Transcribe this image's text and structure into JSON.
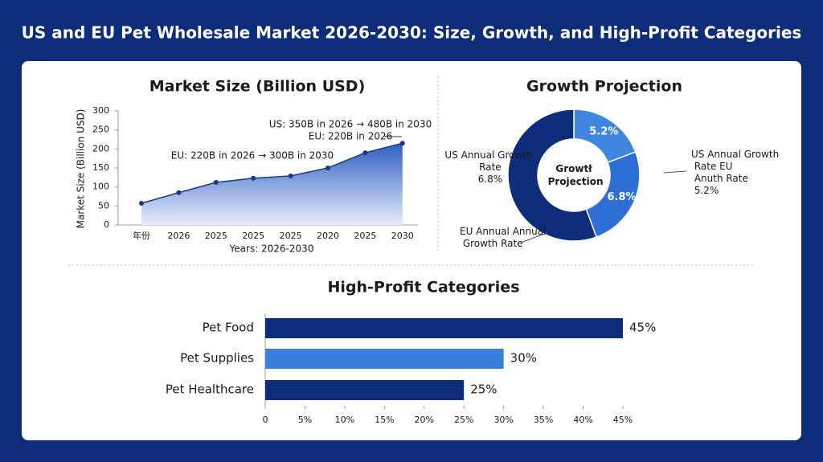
{
  "title": "US and EU Pet Wholesale Market 2026-2030: Size, Growth, and High-Profit Categories",
  "chart_data": [
    {
      "type": "area",
      "title": "Market Size (Billion USD)",
      "y_label": "Market Size (Billion USD)",
      "x_label": "Years: 2026-2030",
      "categories": [
        "年份",
        "2026",
        "2025",
        "2025",
        "2025",
        "2020",
        "2025",
        "2030"
      ],
      "values": [
        57,
        85,
        112,
        123,
        129,
        150,
        190,
        215
      ],
      "ylim": [
        0,
        300
      ],
      "yticks": [
        0,
        50,
        100,
        150,
        200,
        250,
        300
      ],
      "color": "#1b3a86",
      "annotations": [
        "US: 350B in 2026 → 480B in 2030",
        "EU: 220B in 2026",
        "EU: 220B in 2026 → 300B in 2030"
      ]
    },
    {
      "type": "donut",
      "title": "Growth Projection",
      "center_label": "Growtł Projection",
      "values": [
        5.2,
        6.8,
        15
      ],
      "value_labels": [
        "5.2%",
        "6.8%",
        null
      ],
      "colors": [
        "#3f86e0",
        "#2e6fd6",
        "#0d2d7a"
      ],
      "annotations": [
        "US Annual Growth Rate 6.8%",
        "US Annual Growth Rate EU Anuth Rate 5.2%",
        "EU Annual Annual Growth Rate"
      ]
    },
    {
      "type": "hbar",
      "title": "High-Profit Categories",
      "categories": [
        "Pet Food",
        "Pet Supplies",
        "Pet Healthcare"
      ],
      "values": [
        45,
        30,
        25
      ],
      "value_labels": [
        "45%",
        "30%",
        "25%"
      ],
      "colors": [
        "#0d2d7a",
        "#3a7fdc",
        "#0d2d7a"
      ],
      "xlim": [
        0,
        45
      ],
      "xticks": [
        0,
        {
          "value": 5,
          "label": "5%"
        },
        {
          "value": 10,
          "label": "10%"
        },
        {
          "value": 15,
          "label": "15%"
        },
        {
          "value": 20,
          "label": "20%"
        },
        {
          "value": 25,
          "label": "25%"
        },
        {
          "value": 30,
          "label": "30%"
        },
        {
          "value": 35,
          "label": "35%"
        },
        {
          "value": 40,
          "label": "40%"
        },
        {
          "value": 45,
          "label": "45%"
        }
      ]
    }
  ]
}
